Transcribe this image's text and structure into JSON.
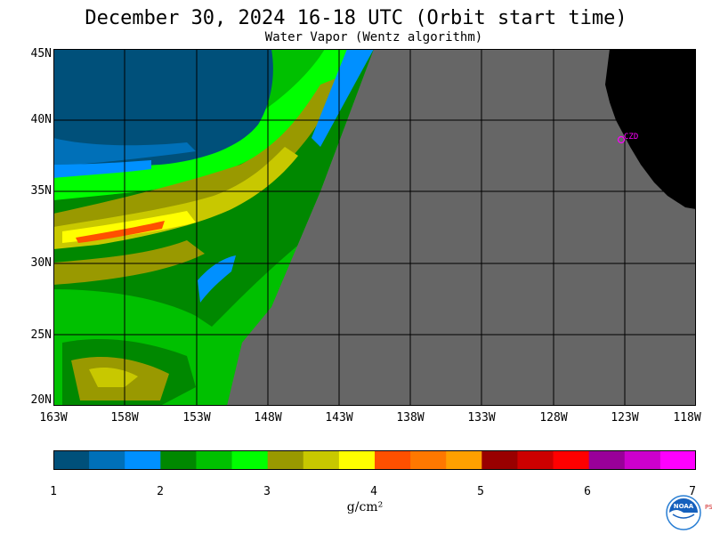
{
  "header": {
    "title": "December 30, 2024  16-18 UTC  (Orbit start time)",
    "subtitle": "Water Vapor (Wentz algorithm)"
  },
  "map": {
    "lat_labels": [
      "45N",
      "40N",
      "35N",
      "30N",
      "25N",
      "20N"
    ],
    "lat_values": [
      45,
      40,
      35,
      30,
      25,
      20
    ],
    "lon_labels": [
      "163W",
      "158W",
      "153W",
      "148W",
      "143W",
      "138W",
      "133W",
      "128W",
      "123W",
      "118W"
    ],
    "lon_values": [
      -163,
      -158,
      -153,
      -148,
      -143,
      -138,
      -133,
      -128,
      -123,
      -118
    ],
    "extent": {
      "lon": [
        -163,
        -118
      ],
      "lat": [
        20,
        45
      ]
    },
    "station": {
      "label": "CZD",
      "lon": -123.1,
      "lat": 38.6,
      "color": "#ff00ff"
    },
    "colors": {
      "no_data": "#666666",
      "land": "#000000",
      "grid": "#000000"
    }
  },
  "colorbar": {
    "tick_labels": [
      "1",
      "2",
      "3",
      "4",
      "5",
      "6",
      "7"
    ],
    "tick_values": [
      1,
      2,
      3,
      4,
      5,
      6,
      7
    ],
    "unit": "g/cm²",
    "colors": [
      "#00507a",
      "#0070b8",
      "#0090ff",
      "#008800",
      "#00c000",
      "#00ff00",
      "#999900",
      "#c8c800",
      "#ffff00",
      "#ff5000",
      "#ff7800",
      "#ffa000",
      "#990000",
      "#cc0000",
      "#ff0000",
      "#990099",
      "#cc00cc",
      "#ff00ff"
    ]
  },
  "logo": {
    "name": "NOAA",
    "side_text": "PSL"
  }
}
